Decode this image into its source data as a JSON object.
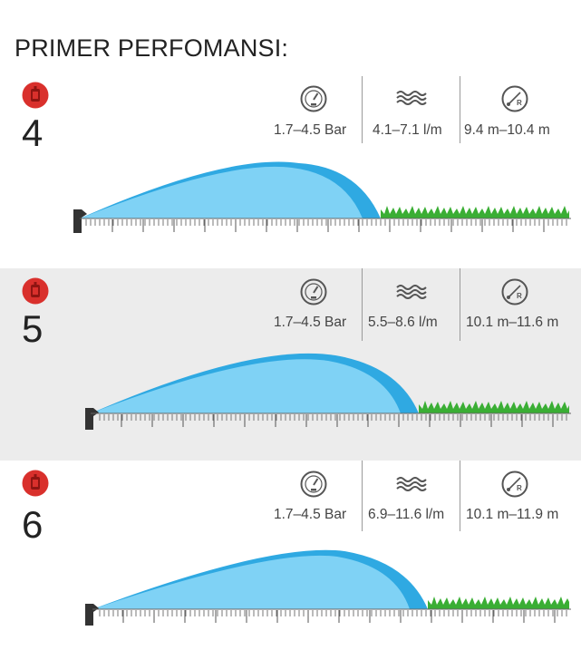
{
  "page": {
    "title": "PRIMER PERFOMANSI:"
  },
  "colors": {
    "badge": "#d9302c",
    "spray_light": "#7fd2f5",
    "spray_dark": "#2fa9e2",
    "grass": "#3aae34"
  },
  "models": [
    {
      "number": "4",
      "pressure": "1.7–4.5 Bar",
      "flow": "4.1–7.1 l/m",
      "radius": "9.4 m–10.4 m"
    },
    {
      "number": "5",
      "pressure": "1.7–4.5 Bar",
      "flow": "5.5–8.6 l/m",
      "radius": "10.1 m–11.6 m"
    },
    {
      "number": "6",
      "pressure": "1.7–4.5 Bar",
      "flow": "6.9–11.6 l/m",
      "radius": "10.1 m–11.9 m"
    }
  ]
}
